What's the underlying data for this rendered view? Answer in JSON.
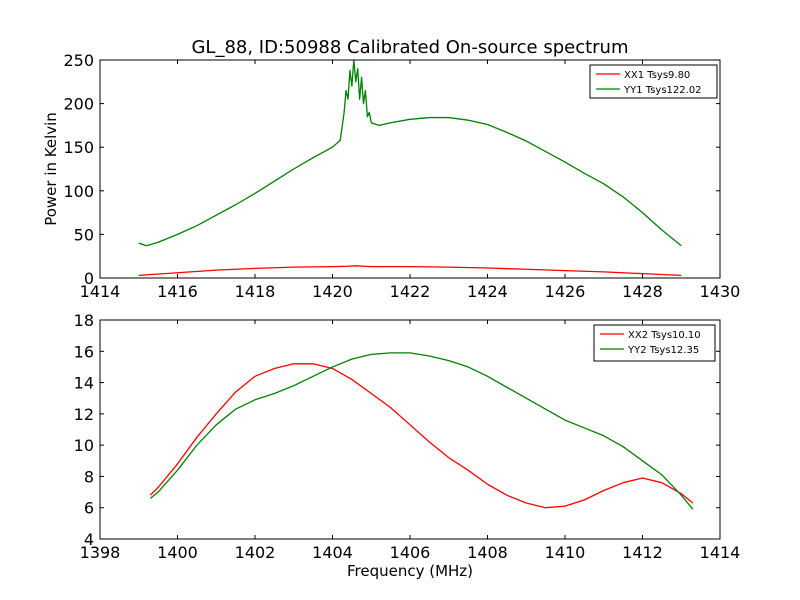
{
  "title": "GL_88, ID:50988 Calibrated On-source spectrum",
  "colors": {
    "red": "#ff0000",
    "green": "#008000"
  },
  "chart_data": [
    {
      "type": "line",
      "ylabel": "Power in Kelvin",
      "xlabel": "",
      "xlim": [
        1414,
        1430
      ],
      "ylim": [
        0,
        250
      ],
      "xticks": [
        1414,
        1416,
        1418,
        1420,
        1422,
        1424,
        1426,
        1428,
        1430
      ],
      "yticks": [
        0,
        50,
        100,
        150,
        200,
        250
      ],
      "legend_position": "upper-right",
      "series": [
        {
          "name": "XX1 Tsys9.80",
          "color": "#ff0000",
          "x": [
            1415.0,
            1416.0,
            1417.0,
            1418.0,
            1419.0,
            1420.0,
            1420.4,
            1420.6,
            1420.8,
            1421.0,
            1422.0,
            1423.0,
            1424.0,
            1425.0,
            1426.0,
            1427.0,
            1428.0,
            1429.0
          ],
          "y": [
            3,
            6,
            9,
            11,
            12.5,
            13,
            13.5,
            14,
            13.5,
            13,
            13,
            12.5,
            11.5,
            10,
            8.5,
            7,
            5,
            3
          ]
        },
        {
          "name": "YY1 Tsys122.02",
          "color": "#008000",
          "x": [
            1415.0,
            1415.2,
            1415.5,
            1416.0,
            1416.5,
            1417.0,
            1417.5,
            1418.0,
            1418.5,
            1419.0,
            1419.5,
            1420.0,
            1420.2,
            1420.3,
            1420.35,
            1420.4,
            1420.45,
            1420.5,
            1420.55,
            1420.6,
            1420.65,
            1420.7,
            1420.75,
            1420.8,
            1420.85,
            1420.9,
            1420.95,
            1421.0,
            1421.2,
            1421.5,
            1422.0,
            1422.5,
            1423.0,
            1423.5,
            1424.0,
            1424.5,
            1425.0,
            1425.5,
            1426.0,
            1426.5,
            1427.0,
            1427.5,
            1428.0,
            1428.5,
            1429.0
          ],
          "y": [
            40,
            37,
            41,
            50,
            60,
            72,
            84,
            97,
            111,
            125,
            138,
            150,
            158,
            190,
            215,
            205,
            238,
            220,
            250,
            225,
            240,
            205,
            230,
            200,
            215,
            185,
            190,
            178,
            175,
            178,
            182,
            184,
            184,
            181,
            176,
            167,
            157,
            145,
            133,
            120,
            108,
            93,
            75,
            55,
            37
          ]
        }
      ]
    },
    {
      "type": "line",
      "ylabel": "",
      "xlabel": "Frequency (MHz)",
      "xlim": [
        1398,
        1414
      ],
      "ylim": [
        4,
        18
      ],
      "xticks": [
        1398,
        1400,
        1402,
        1404,
        1406,
        1408,
        1410,
        1412,
        1414
      ],
      "yticks": [
        4,
        6,
        8,
        10,
        12,
        14,
        16,
        18
      ],
      "legend_position": "upper-right",
      "series": [
        {
          "name": "XX2 Tsys10.10",
          "color": "#ff0000",
          "x": [
            1399.3,
            1399.5,
            1400.0,
            1400.5,
            1401.0,
            1401.5,
            1402.0,
            1402.5,
            1403.0,
            1403.5,
            1404.0,
            1404.5,
            1405.0,
            1405.5,
            1406.0,
            1406.5,
            1407.0,
            1407.5,
            1408.0,
            1408.5,
            1409.0,
            1409.5,
            1410.0,
            1410.5,
            1411.0,
            1411.5,
            1412.0,
            1412.5,
            1413.0,
            1413.3
          ],
          "y": [
            6.8,
            7.3,
            8.8,
            10.5,
            12.0,
            13.4,
            14.4,
            14.9,
            15.2,
            15.2,
            14.9,
            14.2,
            13.3,
            12.4,
            11.3,
            10.2,
            9.2,
            8.4,
            7.5,
            6.8,
            6.3,
            6.0,
            6.1,
            6.5,
            7.1,
            7.6,
            7.9,
            7.6,
            6.9,
            6.3
          ]
        },
        {
          "name": "YY2 Tsys12.35",
          "color": "#008000",
          "x": [
            1399.3,
            1399.5,
            1400.0,
            1400.5,
            1401.0,
            1401.5,
            1402.0,
            1402.5,
            1403.0,
            1403.5,
            1404.0,
            1404.5,
            1405.0,
            1405.5,
            1406.0,
            1406.5,
            1407.0,
            1407.5,
            1408.0,
            1408.5,
            1409.0,
            1409.5,
            1410.0,
            1410.5,
            1411.0,
            1411.5,
            1412.0,
            1412.5,
            1413.0,
            1413.3
          ],
          "y": [
            6.6,
            7.0,
            8.4,
            10.0,
            11.3,
            12.3,
            12.9,
            13.3,
            13.8,
            14.4,
            15.0,
            15.5,
            15.8,
            15.9,
            15.9,
            15.7,
            15.4,
            15.0,
            14.4,
            13.7,
            13.0,
            12.3,
            11.6,
            11.1,
            10.6,
            9.9,
            9.0,
            8.1,
            6.8,
            5.9
          ]
        }
      ]
    }
  ]
}
